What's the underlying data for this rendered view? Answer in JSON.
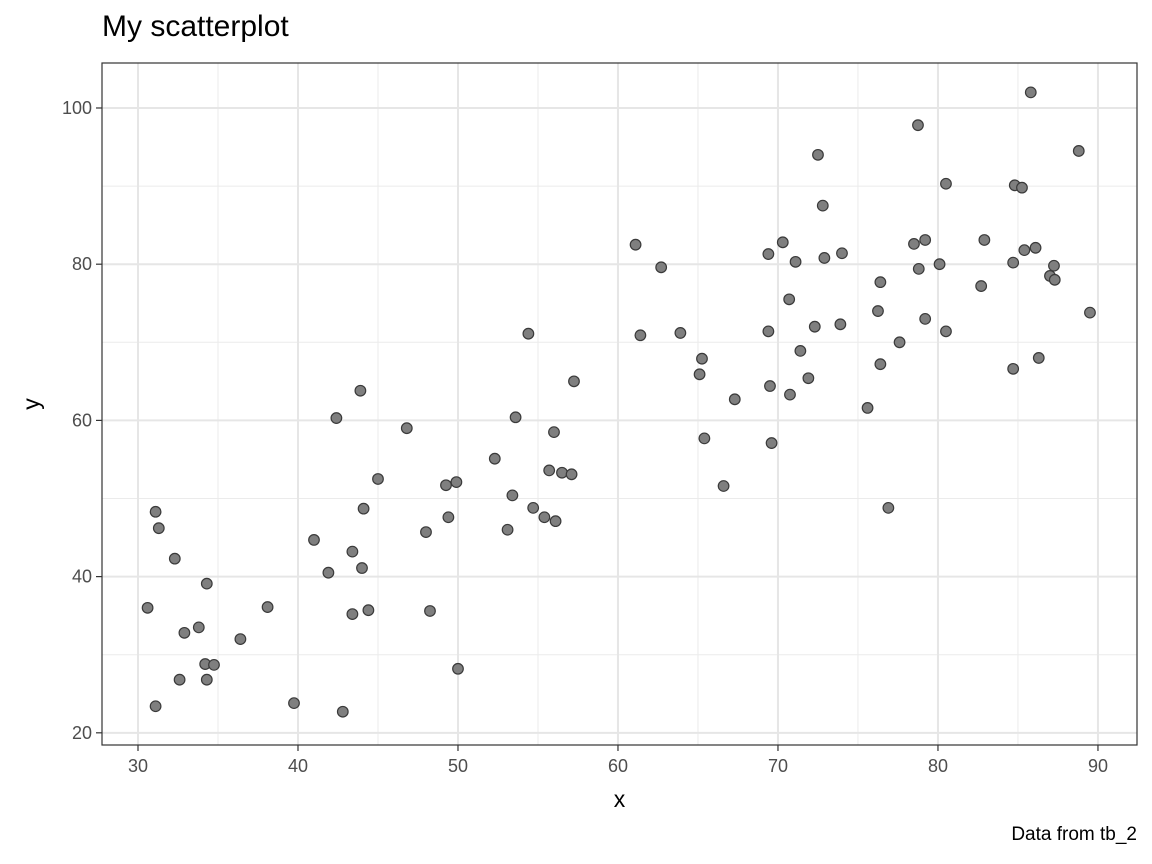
{
  "chart_data": {
    "type": "scatter",
    "title": "My scatterplot",
    "caption": "Data from tb_2",
    "xlabel": "x",
    "ylabel": "y",
    "xlim": [
      27.75,
      92.44
    ],
    "ylim": [
      18.44,
      105.76
    ],
    "xticks": [
      30,
      40,
      50,
      60,
      70,
      80,
      90
    ],
    "yticks": [
      20,
      40,
      60,
      80,
      100
    ],
    "grid": true,
    "point_color": "#000000",
    "point_alpha": 0.5,
    "x": [
      30.6,
      31.1,
      31.3,
      31.1,
      32.3,
      32.6,
      32.9,
      33.8,
      34.2,
      34.3,
      34.3,
      34.75,
      36.4,
      38.1,
      39.75,
      41.0,
      41.9,
      42.4,
      42.8,
      43.4,
      43.4,
      43.9,
      44.0,
      44.1,
      44.4,
      45.0,
      46.8,
      48.0,
      48.25,
      49.25,
      49.4,
      49.9,
      50.0,
      52.3,
      53.1,
      53.4,
      53.6,
      54.4,
      54.7,
      55.4,
      55.7,
      56.1,
      56.0,
      56.5,
      57.1,
      57.25,
      61.1,
      61.4,
      62.7,
      63.9,
      65.1,
      65.25,
      65.4,
      66.6,
      67.3,
      69.4,
      69.4,
      69.5,
      69.6,
      70.3,
      70.7,
      70.75,
      71.1,
      71.4,
      71.9,
      72.3,
      72.5,
      72.8,
      72.9,
      73.9,
      74.0,
      75.6,
      76.25,
      76.4,
      76.4,
      76.9,
      77.6,
      78.5,
      78.75,
      78.8,
      79.2,
      79.2,
      80.1,
      80.5,
      80.5,
      82.7,
      82.9,
      84.7,
      84.7,
      84.8,
      85.25,
      85.4,
      85.8,
      86.1,
      86.3,
      87.0,
      87.25,
      87.3,
      88.8,
      89.5
    ],
    "y": [
      36.0,
      48.3,
      46.2,
      23.4,
      42.3,
      26.8,
      32.8,
      33.5,
      28.8,
      39.1,
      26.8,
      28.7,
      32.0,
      36.1,
      23.8,
      44.7,
      40.5,
      60.3,
      22.7,
      43.2,
      35.2,
      63.8,
      41.1,
      48.7,
      35.7,
      52.5,
      59.0,
      45.7,
      35.6,
      51.7,
      47.6,
      52.1,
      28.2,
      55.1,
      46.0,
      50.4,
      60.4,
      71.1,
      48.8,
      47.6,
      53.6,
      47.1,
      58.5,
      53.3,
      53.1,
      65.0,
      82.5,
      70.9,
      79.6,
      71.2,
      65.9,
      67.9,
      57.7,
      51.6,
      62.7,
      81.3,
      71.4,
      64.4,
      57.1,
      82.8,
      75.5,
      63.3,
      80.3,
      68.9,
      65.4,
      72.0,
      94.0,
      87.5,
      80.8,
      72.3,
      81.4,
      61.6,
      74.0,
      77.7,
      67.2,
      48.8,
      70.0,
      82.6,
      97.8,
      79.4,
      73.0,
      83.1,
      80.0,
      71.4,
      90.3,
      77.2,
      83.1,
      66.6,
      80.2,
      90.1,
      89.8,
      81.8,
      102.0,
      82.1,
      68.0,
      78.5,
      79.8,
      78.0,
      94.5,
      73.8
    ]
  }
}
